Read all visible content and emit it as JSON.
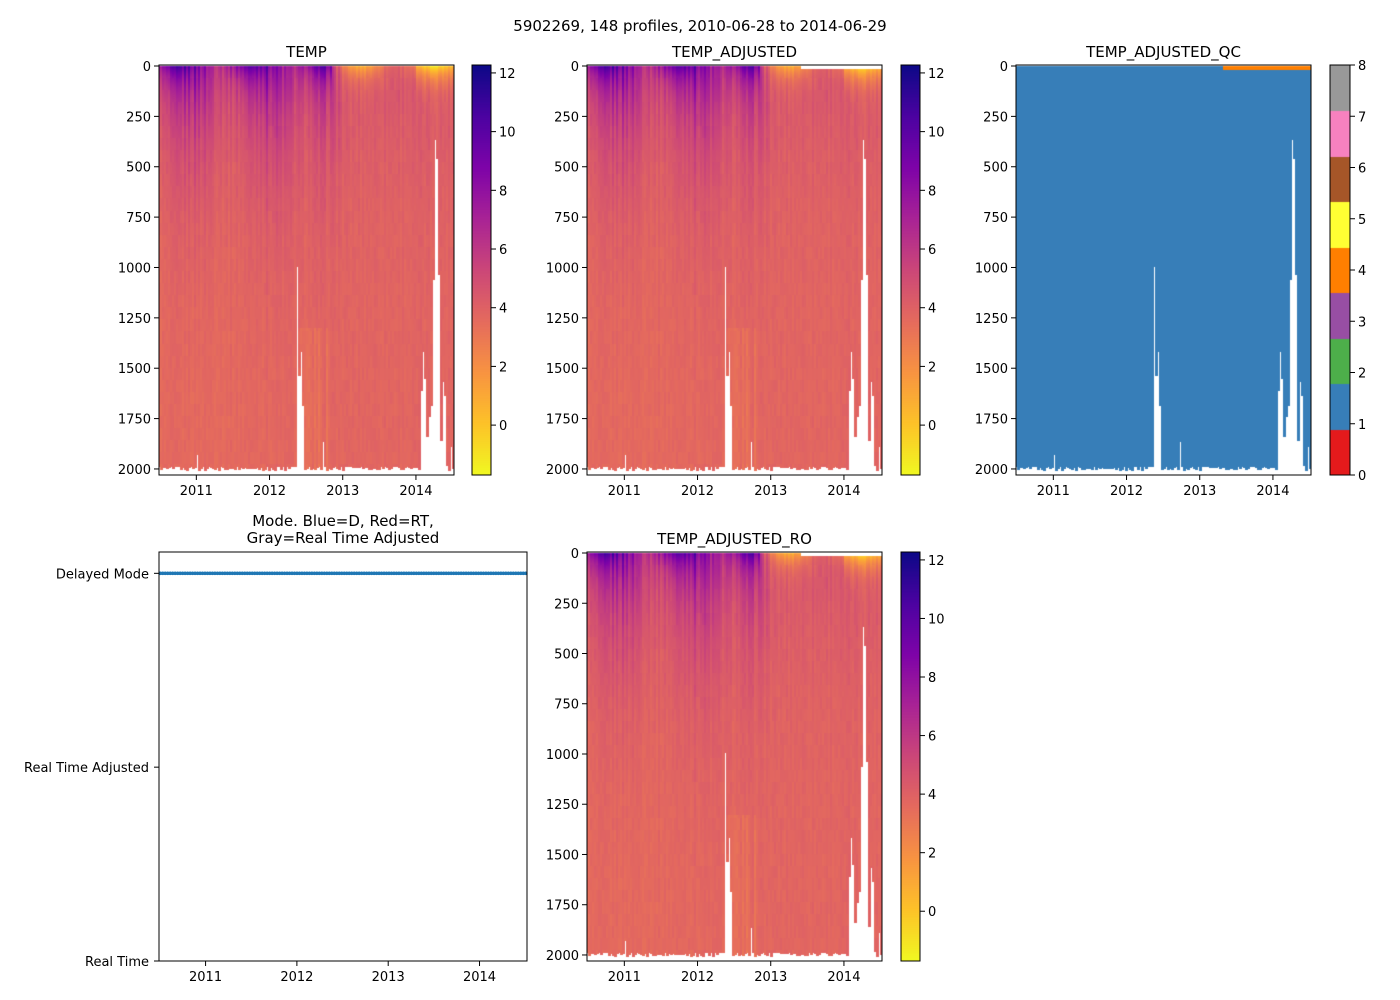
{
  "figure": {
    "title": "5902269, 148 profiles, 2010-06-28 to 2014-06-29"
  },
  "chart_data": [
    {
      "id": "temp",
      "type": "heatmap",
      "title": "TEMP",
      "xlim": [
        2010.49,
        2014.52
      ],
      "ylim": [
        2030,
        -5
      ],
      "xticks": [
        2011,
        2012,
        2013,
        2014
      ],
      "xtick_labels": [
        "2011",
        "2012",
        "2013",
        "2014"
      ],
      "yticks": [
        0,
        250,
        500,
        750,
        1000,
        1250,
        1500,
        1750,
        2000
      ],
      "ytick_labels": [
        "0",
        "250",
        "500",
        "750",
        "1000",
        "1250",
        "1500",
        "1750",
        "2000"
      ],
      "colormap": "plasma_r",
      "clim": [
        -1.7,
        12.27
      ],
      "colorbar_ticks": [
        0,
        2,
        4,
        6,
        8,
        10,
        12
      ],
      "colorbar_tick_labels": [
        "0",
        "2",
        "4",
        "6",
        "8",
        "10",
        "12"
      ],
      "top_masked": false
    },
    {
      "id": "adj",
      "type": "heatmap",
      "title": "TEMP_ADJUSTED",
      "xlim": [
        2010.49,
        2014.52
      ],
      "ylim": [
        2030,
        -5
      ],
      "xticks": [
        2011,
        2012,
        2013,
        2014
      ],
      "xtick_labels": [
        "2011",
        "2012",
        "2013",
        "2014"
      ],
      "yticks": [
        0,
        250,
        500,
        750,
        1000,
        1250,
        1500,
        1750,
        2000
      ],
      "ytick_labels": [
        "0",
        "250",
        "500",
        "750",
        "1000",
        "1250",
        "1500",
        "1750",
        "2000"
      ],
      "colormap": "plasma_r",
      "clim": [
        -1.7,
        12.27
      ],
      "colorbar_ticks": [
        0,
        2,
        4,
        6,
        8,
        10,
        12
      ],
      "colorbar_tick_labels": [
        "0",
        "2",
        "4",
        "6",
        "8",
        "10",
        "12"
      ],
      "top_masked": true
    },
    {
      "id": "qc",
      "type": "heatmap",
      "title": "TEMP_ADJUSTED_QC",
      "xlim": [
        2010.49,
        2014.52
      ],
      "ylim": [
        2030,
        -5
      ],
      "xticks": [
        2011,
        2012,
        2013,
        2014
      ],
      "xtick_labels": [
        "2011",
        "2012",
        "2013",
        "2014"
      ],
      "yticks": [
        0,
        250,
        500,
        750,
        1000,
        1250,
        1500,
        1750,
        2000
      ],
      "ytick_labels": [
        "0",
        "250",
        "500",
        "750",
        "1000",
        "1250",
        "1500",
        "1750",
        "2000"
      ],
      "colormap": "qc_categorical",
      "clim": [
        0,
        8
      ],
      "qc_colors": [
        "#e41a1c",
        "#377eb8",
        "#4daf4a",
        "#984ea3",
        "#ff7f00",
        "#ffff33",
        "#a65628",
        "#f781bf",
        "#999999"
      ],
      "colorbar_ticks": [
        0,
        1,
        2,
        3,
        4,
        5,
        6,
        7,
        8
      ],
      "colorbar_tick_labels": [
        "0",
        "1",
        "2",
        "3",
        "4",
        "5",
        "6",
        "7",
        "8"
      ],
      "dominant_flag": 1,
      "surface_flag": 4,
      "surface_flag_from_profile": 104
    },
    {
      "id": "mode",
      "type": "scatter",
      "title": "Mode. Blue=D, Red=RT,",
      "title_line2": "Gray=Real Time Adjusted",
      "xlim": [
        2010.49,
        2014.52
      ],
      "ylim": [
        0,
        2.11
      ],
      "xticks": [
        2011,
        2012,
        2013,
        2014
      ],
      "xtick_labels": [
        "2011",
        "2012",
        "2013",
        "2014"
      ],
      "yticks": [
        2,
        1,
        0
      ],
      "ytick_labels": [
        "Delayed Mode",
        "Real Time Adjusted",
        "Real Time"
      ],
      "series": [
        {
          "name": "Delayed Mode",
          "color": "#1f77b4",
          "y": 2,
          "count": 148
        }
      ]
    },
    {
      "id": "ro",
      "type": "heatmap",
      "title": "TEMP_ADJUSTED_RO",
      "xlim": [
        2010.49,
        2014.52
      ],
      "ylim": [
        2030,
        -5
      ],
      "xticks": [
        2011,
        2012,
        2013,
        2014
      ],
      "xtick_labels": [
        "2011",
        "2012",
        "2013",
        "2014"
      ],
      "yticks": [
        0,
        250,
        500,
        750,
        1000,
        1250,
        1500,
        1750,
        2000
      ],
      "ytick_labels": [
        "0",
        "250",
        "500",
        "750",
        "1000",
        "1250",
        "1500",
        "1750",
        "2000"
      ],
      "colormap": "plasma_r",
      "clim": [
        -1.7,
        12.27
      ],
      "colorbar_ticks": [
        0,
        2,
        4,
        6,
        8,
        10,
        12
      ],
      "colorbar_tick_labels": [
        "0",
        "2",
        "4",
        "6",
        "8",
        "10",
        "12"
      ],
      "top_masked": true
    }
  ],
  "profiles": {
    "count": 148,
    "start": 2010.49,
    "end": 2014.52,
    "typical_max_depth": [
      1985,
      2007
    ],
    "max_depth_exceptions": {
      "19": 1925,
      "69": 990,
      "70": 1530,
      "71": 1410,
      "72": 1680,
      "82": 1860,
      "131": 1608,
      "132": 1414,
      "133": 1548,
      "134": 1835,
      "135": 1735,
      "136": 1682,
      "137": 1057,
      "138": 361,
      "139": 456,
      "140": 1033,
      "141": 1856,
      "142": 1561,
      "143": 1633,
      "144": 1980,
      "145": 2005,
      "146": 1887,
      "147": 1995
    }
  },
  "plasma_stops": [
    "#0d0887",
    "#4c02a1",
    "#7e03a8",
    "#a92395",
    "#cc4778",
    "#e56b5d",
    "#f89441",
    "#fdc328",
    "#f0f921"
  ]
}
